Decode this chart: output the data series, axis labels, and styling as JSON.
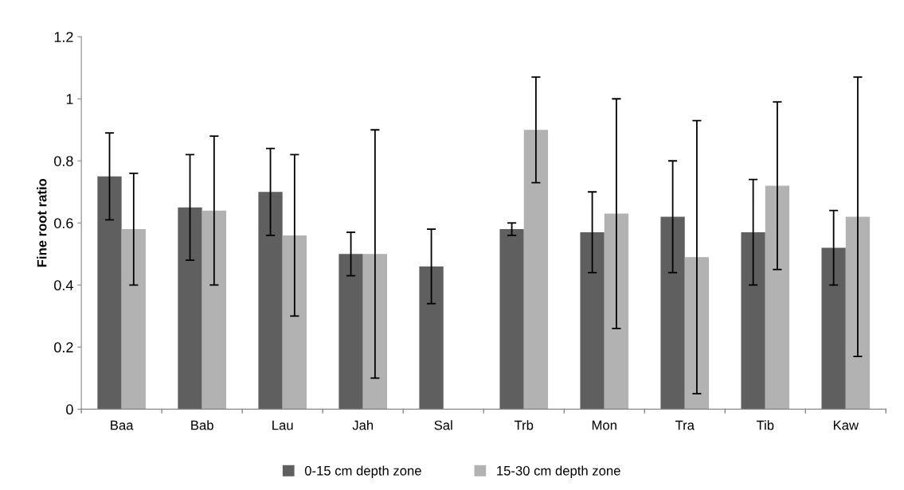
{
  "chart_data": {
    "type": "bar",
    "ylabel": "Fine root ratio",
    "categories": [
      "Baa",
      "Bab",
      "Lau",
      "Jah",
      "Sal",
      "Trb",
      "Mon",
      "Tra",
      "Tib",
      "Kaw"
    ],
    "series": [
      {
        "name": "0-15 cm depth zone",
        "color": "#5f5f5f",
        "values": [
          0.75,
          0.65,
          0.7,
          0.5,
          0.46,
          0.58,
          0.57,
          0.62,
          0.57,
          0.52
        ],
        "errors": [
          [
            0.61,
            0.89
          ],
          [
            0.48,
            0.82
          ],
          [
            0.56,
            0.84
          ],
          [
            0.43,
            0.57
          ],
          [
            0.34,
            0.58
          ],
          [
            0.56,
            0.6
          ],
          [
            0.44,
            0.7
          ],
          [
            0.44,
            0.8
          ],
          [
            0.4,
            0.74
          ],
          [
            0.4,
            0.64
          ]
        ]
      },
      {
        "name": "15-30 cm depth zone",
        "color": "#b2b2b2",
        "values": [
          0.58,
          0.64,
          0.56,
          0.5,
          null,
          0.9,
          0.63,
          0.49,
          0.72,
          0.62
        ],
        "errors": [
          [
            0.4,
            0.76
          ],
          [
            0.4,
            0.88
          ],
          [
            0.3,
            0.82
          ],
          [
            0.1,
            0.9
          ],
          null,
          [
            0.73,
            1.07
          ],
          [
            0.26,
            1.0
          ],
          [
            0.05,
            0.93
          ],
          [
            0.45,
            0.99
          ],
          [
            0.17,
            1.07
          ]
        ]
      }
    ],
    "ylim": [
      0,
      1.2
    ],
    "yticks": [
      0,
      0.2,
      0.4,
      0.6,
      0.8,
      1,
      1.2
    ],
    "grid": false,
    "legend": "bottom"
  }
}
